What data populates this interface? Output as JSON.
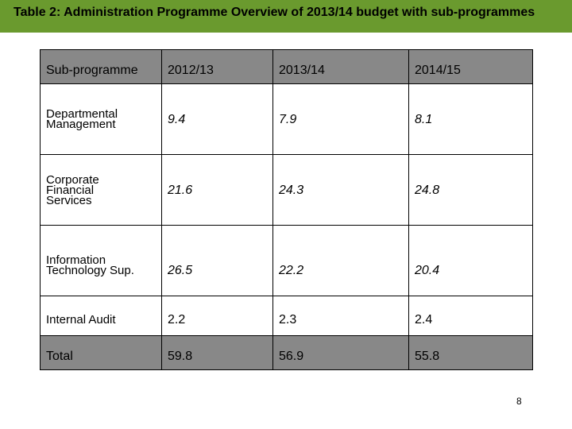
{
  "title": "Table 2: Administration Programme Overview of 2013/14 budget with sub-programmes",
  "colors": {
    "header_bar": "#6a9a2e",
    "row_highlight": "#888888"
  },
  "table": {
    "headers": [
      "Sub-programme",
      "2012/13",
      "2013/14",
      "2014/15"
    ],
    "rows": [
      {
        "label_lines": [
          "Departmental",
          "Management"
        ],
        "values": [
          "9.4",
          "7.9",
          "8.1"
        ]
      },
      {
        "label_lines": [
          "Corporate",
          "Financial",
          "Services"
        ],
        "values": [
          "21.6",
          "24.3",
          "24.8"
        ]
      },
      {
        "label_lines": [
          "Information",
          "Technology Sup."
        ],
        "values": [
          "26.5",
          "22.2",
          "20.4"
        ]
      },
      {
        "label_lines": [
          "Internal Audit"
        ],
        "values": [
          "2.2",
          "2.3",
          "2.4"
        ]
      }
    ],
    "total": {
      "label": "Total",
      "values": [
        "59.8",
        "56.9",
        "55.8"
      ]
    }
  },
  "page_number": "8"
}
